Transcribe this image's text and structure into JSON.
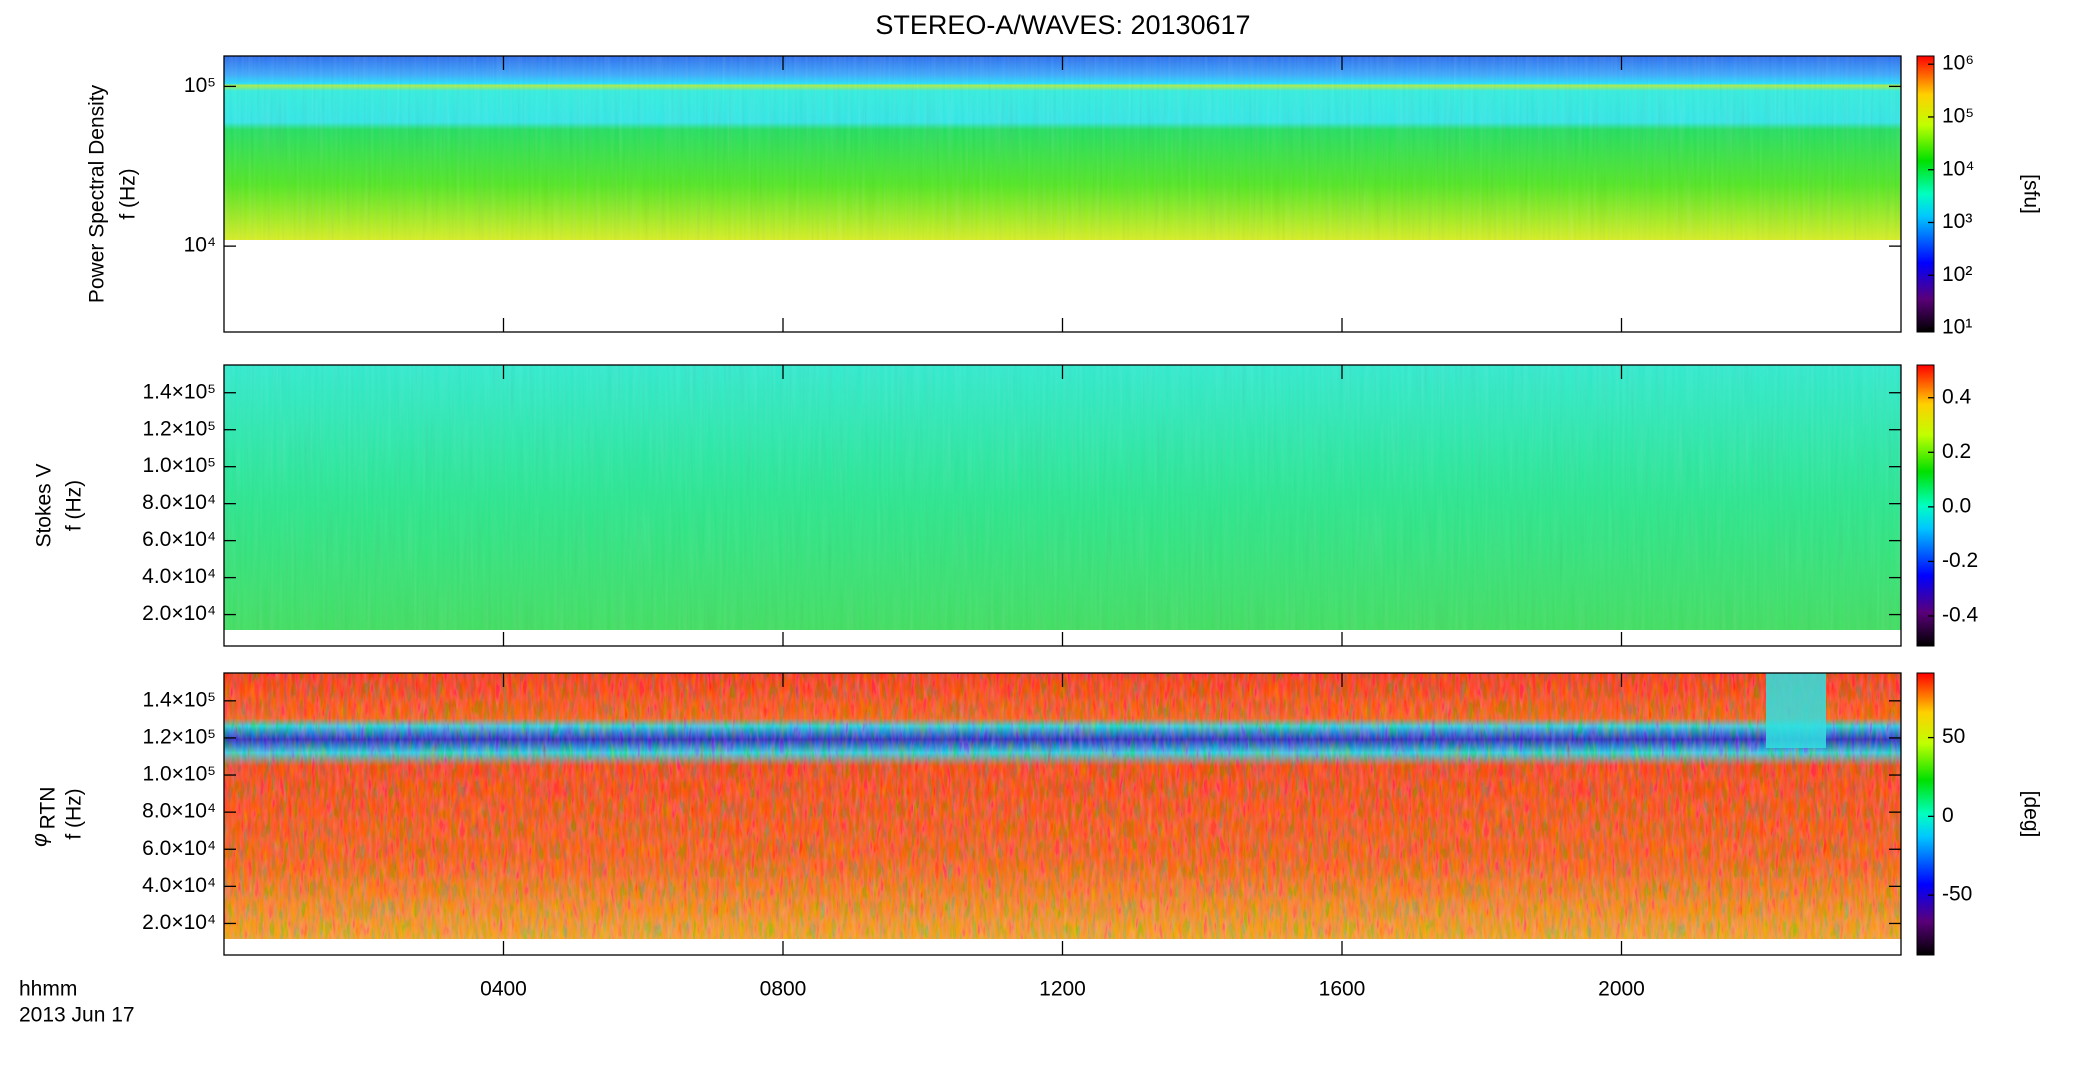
{
  "chart_data": {
    "type": "spectrogram",
    "title": "STEREO-A/WAVES: 20130617",
    "xlabel": "hhmm",
    "date": "2013 Jun 17",
    "xlim": [
      0,
      24
    ],
    "xticks": [
      {
        "value": 4,
        "label": "0400"
      },
      {
        "value": 8,
        "label": "0800"
      },
      {
        "value": 12,
        "label": "1200"
      },
      {
        "value": 16,
        "label": "1600"
      },
      {
        "value": 20,
        "label": "2000"
      }
    ],
    "panels": [
      {
        "ylabel": [
          "Power Spectral Density",
          "f (Hz)"
        ],
        "ylog": true,
        "ylim": [
          2900,
          155000
        ],
        "yticks": [
          {
            "value": 10000,
            "label": "10⁴"
          },
          {
            "value": 100000,
            "label": "10⁵"
          }
        ],
        "colorbar": {
          "label": "[sfu]",
          "log": true,
          "lim": [
            8.4,
            1430000
          ],
          "ticks": [
            {
              "value": 10,
              "label": "10¹"
            },
            {
              "value": 100,
              "label": "10²"
            },
            {
              "value": 1000,
              "label": "10³"
            },
            {
              "value": 10000,
              "label": "10⁴"
            },
            {
              "value": 100000,
              "label": "10⁵"
            },
            {
              "value": 1000000,
              "label": "10⁶"
            }
          ]
        }
      },
      {
        "ylabel": [
          "Stokes V",
          "f (Hz)"
        ],
        "ylog": false,
        "ylim": [
          3000,
          155000
        ],
        "yticks": [
          {
            "value": 20000,
            "label": "2.0×10⁴"
          },
          {
            "value": 40000,
            "label": "4.0×10⁴"
          },
          {
            "value": 60000,
            "label": "6.0×10⁴"
          },
          {
            "value": 80000,
            "label": "8.0×10⁴"
          },
          {
            "value": 100000,
            "label": "1.0×10⁵"
          },
          {
            "value": 120000,
            "label": "1.2×10⁵"
          },
          {
            "value": 140000,
            "label": "1.4×10⁵"
          }
        ],
        "colorbar": {
          "label": "",
          "log": false,
          "lim": [
            -0.51,
            0.52
          ],
          "ticks": [
            -0.4,
            -0.2,
            {
              "value": 0,
              "label": "0.0"
            },
            0.2,
            0.4
          ]
        }
      },
      {
        "symbol": "φ",
        "symbol_subscript": "RTN",
        "ylabel": [
          "f (Hz)"
        ],
        "ylog": false,
        "ylim": [
          3000,
          155000
        ],
        "yticks": [
          {
            "value": 20000,
            "label": "2.0×10⁴"
          },
          {
            "value": 40000,
            "label": "4.0×10⁴"
          },
          {
            "value": 60000,
            "label": "6.0×10⁴"
          },
          {
            "value": 80000,
            "label": "8.0×10⁴"
          },
          {
            "value": 100000,
            "label": "1.0×10⁵"
          },
          {
            "value": 120000,
            "label": "1.2×10⁵"
          },
          {
            "value": 140000,
            "label": "1.4×10⁵"
          }
        ],
        "colorbar": {
          "label": "[deg]",
          "log": false,
          "lim": [
            -88,
            91
          ],
          "ticks": [
            -50,
            0,
            50
          ]
        }
      }
    ]
  }
}
